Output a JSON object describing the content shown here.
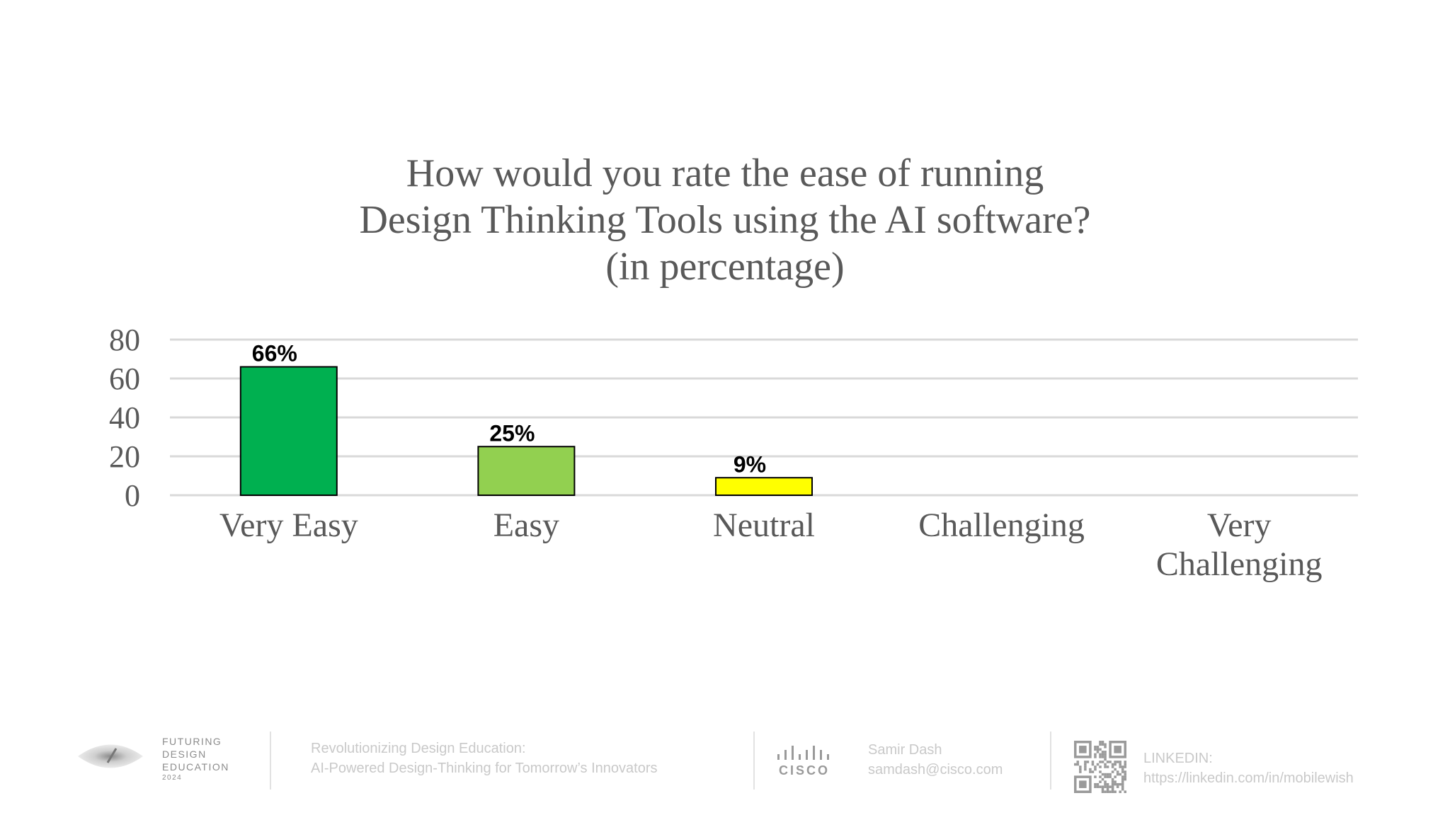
{
  "chart_data": {
    "type": "bar",
    "title_lines": [
      "How would you rate the ease of running",
      "Design Thinking Tools using the AI software?",
      "(in percentage)"
    ],
    "categories": [
      "Very Easy",
      "Easy",
      "Neutral",
      "Challenging",
      "Very Challenging"
    ],
    "category_lines": [
      [
        "Very Easy"
      ],
      [
        "Easy"
      ],
      [
        "Neutral"
      ],
      [
        "Challenging"
      ],
      [
        "Very",
        "Challenging"
      ]
    ],
    "values": [
      66,
      25,
      9,
      0,
      0
    ],
    "data_labels": [
      "66%",
      "25%",
      "9%",
      "",
      ""
    ],
    "colors": [
      "#00b050",
      "#92d050",
      "#ffff00",
      "#00b050",
      "#00b050"
    ],
    "yticks": [
      0,
      20,
      40,
      60,
      80
    ],
    "ylim": [
      0,
      80
    ],
    "grid": true
  },
  "footer": {
    "brand": [
      "FUTURING",
      "DESIGN",
      "EDUCATION",
      "2024"
    ],
    "talk_title": "Revolutionizing Design Education:",
    "talk_subtitle": "AI-Powered Design-Thinking  for Tomorrow’s Innovators",
    "cisco_wordmark": "CISCO",
    "speaker_name": "Samir Dash",
    "speaker_email": "samdash@cisco.com",
    "linkedin_label": "LINKEDIN:",
    "linkedin_url": "https://linkedin.com/in/mobilewish"
  },
  "icons": [
    "logo-eye-icon",
    "cisco-logo-icon",
    "qr-code-icon"
  ]
}
